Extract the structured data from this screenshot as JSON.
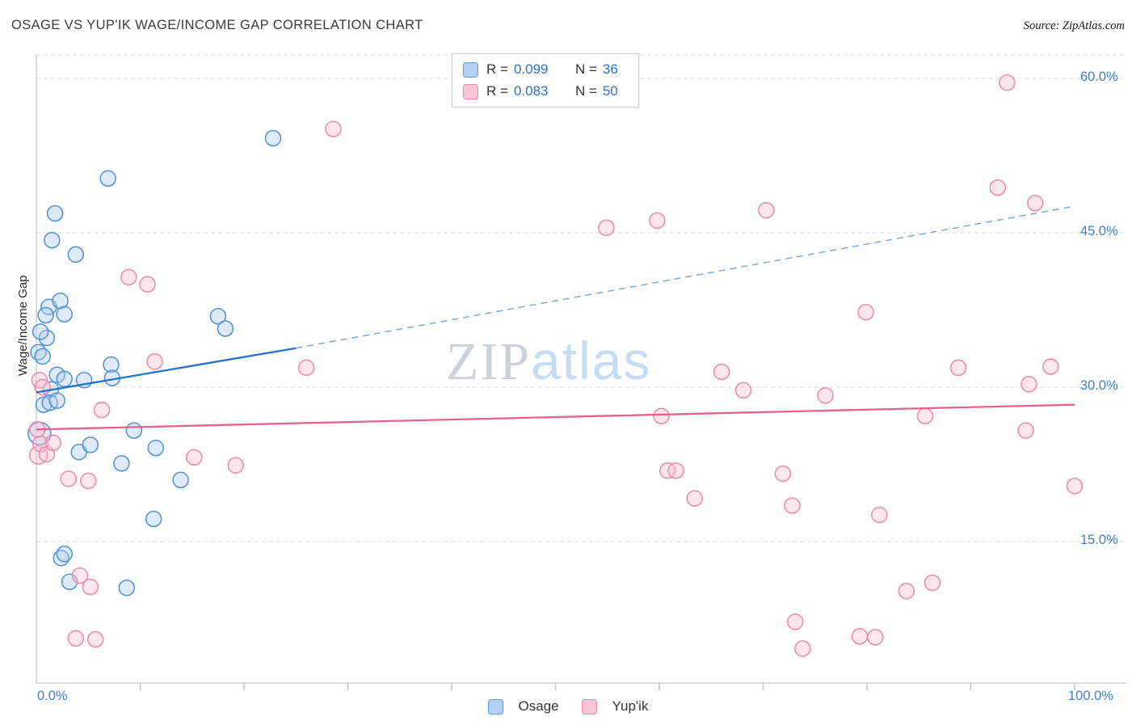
{
  "header": {
    "title": "OSAGE VS YUP'IK WAGE/INCOME GAP CORRELATION CHART",
    "source": "Source: ZipAtlas.com"
  },
  "watermark": {
    "zip": "ZIP",
    "atlas": "atlas"
  },
  "legend_box": {
    "series": [
      {
        "r_label": "R =",
        "r_value": "0.099",
        "n_label": "N =",
        "n_value": "36"
      },
      {
        "r_label": "R =",
        "r_value": "0.083",
        "n_label": "N =",
        "n_value": "50"
      }
    ]
  },
  "axes": {
    "y_label": "Wage/Income Gap",
    "y_ticks": [
      "60.0%",
      "45.0%",
      "30.0%",
      "15.0%"
    ],
    "x_tick_left": "0.0%",
    "x_tick_right": "100.0%"
  },
  "bottom_legend": [
    {
      "label": "Osage"
    },
    {
      "label": "Yup'ik"
    }
  ],
  "chart_data": {
    "type": "scatter",
    "title": "OSAGE VS YUP'IK WAGE/INCOME GAP CORRELATION CHART",
    "xlabel": "",
    "ylabel": "Wage/Income Gap",
    "xlim": [
      0,
      105
    ],
    "ylim": [
      0,
      62
    ],
    "x_units": "percent",
    "y_units": "percent",
    "grid": "horizontal-dashed",
    "legend_position": "bottom-center",
    "series": [
      {
        "name": "Osage",
        "R": 0.099,
        "N": 36,
        "stroke": "#4f90d5",
        "fill": "#aecbf0",
        "points": [
          [
            0.3,
            25.5,
            14
          ],
          [
            0.2,
            33.4
          ],
          [
            0.6,
            33.0
          ],
          [
            1.0,
            34.8
          ],
          [
            0.4,
            35.4
          ],
          [
            1.2,
            37.8
          ],
          [
            2.3,
            38.4
          ],
          [
            2.7,
            37.1
          ],
          [
            0.9,
            37.0
          ],
          [
            1.5,
            44.3
          ],
          [
            1.8,
            46.9
          ],
          [
            3.8,
            42.9
          ],
          [
            6.9,
            50.3
          ],
          [
            22.8,
            54.2
          ],
          [
            2.0,
            31.2
          ],
          [
            2.7,
            30.8
          ],
          [
            1.4,
            29.8
          ],
          [
            0.7,
            28.3
          ],
          [
            1.3,
            28.5
          ],
          [
            2.0,
            28.7
          ],
          [
            4.1,
            23.7
          ],
          [
            5.2,
            24.4
          ],
          [
            4.6,
            30.7
          ],
          [
            7.2,
            32.2
          ],
          [
            7.3,
            30.9
          ],
          [
            8.2,
            22.6
          ],
          [
            9.4,
            25.8
          ],
          [
            11.5,
            24.1
          ],
          [
            11.3,
            17.2
          ],
          [
            13.9,
            21.0
          ],
          [
            2.4,
            13.4
          ],
          [
            2.7,
            13.8
          ],
          [
            3.2,
            11.1
          ],
          [
            8.7,
            10.5
          ],
          [
            17.5,
            36.9
          ],
          [
            18.2,
            35.7
          ]
        ]
      },
      {
        "name": "Yup'ik",
        "R": 0.083,
        "N": 50,
        "stroke": "#ef87a9",
        "fill": "#f9c0d2",
        "points": [
          [
            28.6,
            55.1
          ],
          [
            93.5,
            59.6
          ],
          [
            92.6,
            49.4
          ],
          [
            96.2,
            47.9
          ],
          [
            70.3,
            47.2
          ],
          [
            59.8,
            46.2
          ],
          [
            54.9,
            45.5
          ],
          [
            8.9,
            40.7
          ],
          [
            10.7,
            40.0
          ],
          [
            79.9,
            37.3
          ],
          [
            26.0,
            31.9
          ],
          [
            11.4,
            32.5
          ],
          [
            88.8,
            31.9
          ],
          [
            97.7,
            32.0
          ],
          [
            95.6,
            30.3
          ],
          [
            68.1,
            29.7
          ],
          [
            76.0,
            29.2
          ],
          [
            60.2,
            27.2
          ],
          [
            85.6,
            27.2
          ],
          [
            95.3,
            25.8
          ],
          [
            60.8,
            21.9
          ],
          [
            61.6,
            21.9
          ],
          [
            71.9,
            21.6
          ],
          [
            63.4,
            19.2
          ],
          [
            72.8,
            18.5
          ],
          [
            81.2,
            17.6
          ],
          [
            0.3,
            30.7
          ],
          [
            0.2,
            23.4,
            11
          ],
          [
            0.4,
            24.5
          ],
          [
            3.1,
            21.1
          ],
          [
            5.0,
            20.9
          ],
          [
            6.3,
            27.8
          ],
          [
            4.2,
            11.7
          ],
          [
            5.2,
            10.6
          ],
          [
            3.8,
            5.6
          ],
          [
            5.7,
            5.5
          ],
          [
            83.8,
            10.2
          ],
          [
            86.3,
            11.0
          ],
          [
            79.3,
            5.8
          ],
          [
            80.8,
            5.7
          ],
          [
            73.1,
            7.2
          ],
          [
            73.8,
            4.6
          ],
          [
            100.0,
            20.4
          ],
          [
            0.1,
            25.9
          ],
          [
            0.6,
            30.0
          ],
          [
            1.0,
            23.5
          ],
          [
            15.2,
            23.2
          ],
          [
            19.2,
            22.4
          ],
          [
            66.0,
            31.5
          ],
          [
            1.6,
            24.6
          ]
        ]
      }
    ],
    "trend_lines": [
      {
        "series": "Osage",
        "style": "solid",
        "x1": 0,
        "y1": 29.5,
        "x2": 25,
        "y2": 33.8
      },
      {
        "series": "Osage",
        "style": "dashed",
        "x1": 25,
        "y1": 33.8,
        "x2": 100,
        "y2": 47.6
      },
      {
        "series": "Yup'ik",
        "style": "solid",
        "x1": 0,
        "y1": 25.9,
        "x2": 100,
        "y2": 28.3
      }
    ]
  }
}
